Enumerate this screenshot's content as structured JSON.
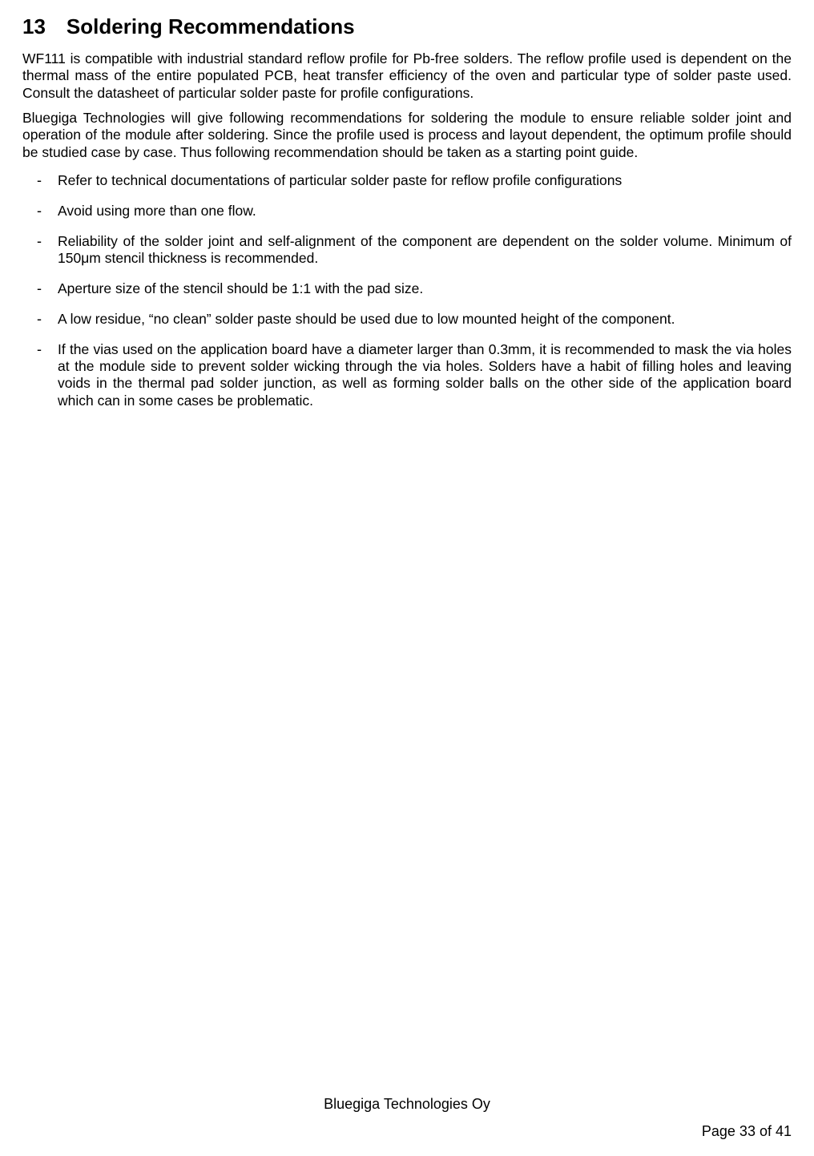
{
  "heading": {
    "number": "13",
    "title": "Soldering Recommendations"
  },
  "paragraphs": [
    "WF111 is compatible with industrial standard reflow profile for Pb-free solders. The reflow profile used is dependent on the thermal mass of the entire populated PCB, heat transfer efficiency of the oven and particular type of solder paste used. Consult the datasheet of particular solder paste for profile configurations.",
    "Bluegiga Technologies will give following recommendations for soldering the module to ensure reliable solder joint and operation of the module after soldering. Since the profile used is process and layout dependent, the optimum profile should be studied case by case. Thus following recommendation should be taken as a starting point guide."
  ],
  "bullets": [
    "Refer to technical documentations of particular solder paste for reflow profile configurations",
    "Avoid using more than one flow.",
    "Reliability of the solder joint and self-alignment of the component are dependent on the solder volume. Minimum of 150μm stencil thickness is recommended.",
    "Aperture size of the stencil should be 1:1 with the pad size.",
    "A low residue, “no clean” solder paste should be used due to low mounted height of the component.",
    "If the vias used on the application board have a diameter larger than 0.3mm, it is recommended to mask the via holes at the module side to prevent solder wicking through the via holes. Solders have a habit of filling holes and leaving voids in the thermal pad solder junction, as well as forming solder balls on the other side of the application board which can in some cases be problematic."
  ],
  "footer": {
    "company": "Bluegiga Technologies Oy",
    "page": "Page 33 of 41"
  }
}
